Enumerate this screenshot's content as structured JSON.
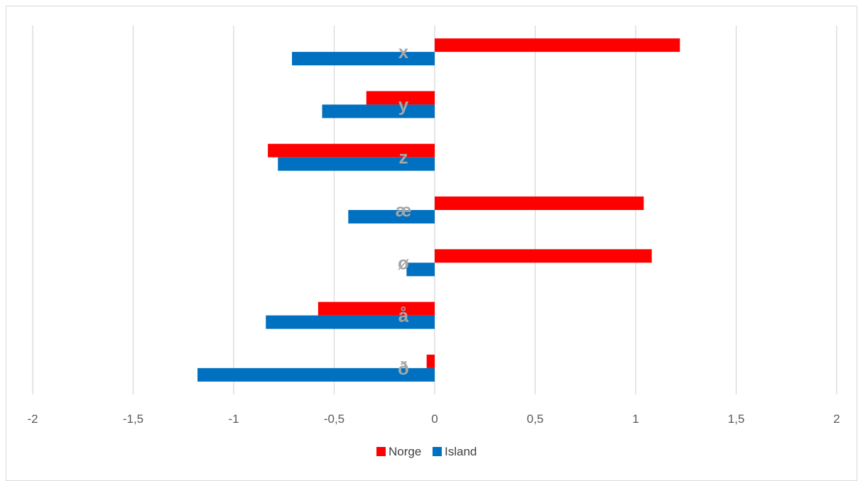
{
  "chart_data": {
    "type": "bar",
    "orientation": "horizontal",
    "categories": [
      "x",
      "y",
      "z",
      "æ",
      "ø",
      "å",
      "ð"
    ],
    "series": [
      {
        "name": "Norge",
        "color": "#ff0000",
        "values": [
          1.22,
          -0.34,
          -0.83,
          1.04,
          1.08,
          -0.58,
          -0.04
        ]
      },
      {
        "name": "Island",
        "color": "#0070c0",
        "values": [
          -0.71,
          -0.56,
          -0.78,
          -0.43,
          -0.14,
          -0.84,
          -1.18
        ]
      }
    ],
    "xlim": [
      -2,
      2
    ],
    "x_ticks": [
      "-2",
      "-1,5",
      "-1",
      "-0,5",
      "0",
      "0,5",
      "1",
      "1,5",
      "2"
    ],
    "x_tick_values": [
      -2,
      -1.5,
      -1,
      -0.5,
      0,
      0.5,
      1,
      1.5,
      2
    ],
    "grid": "vertical",
    "legend_position": "bottom",
    "title": "",
    "xlabel": "",
    "ylabel": ""
  }
}
